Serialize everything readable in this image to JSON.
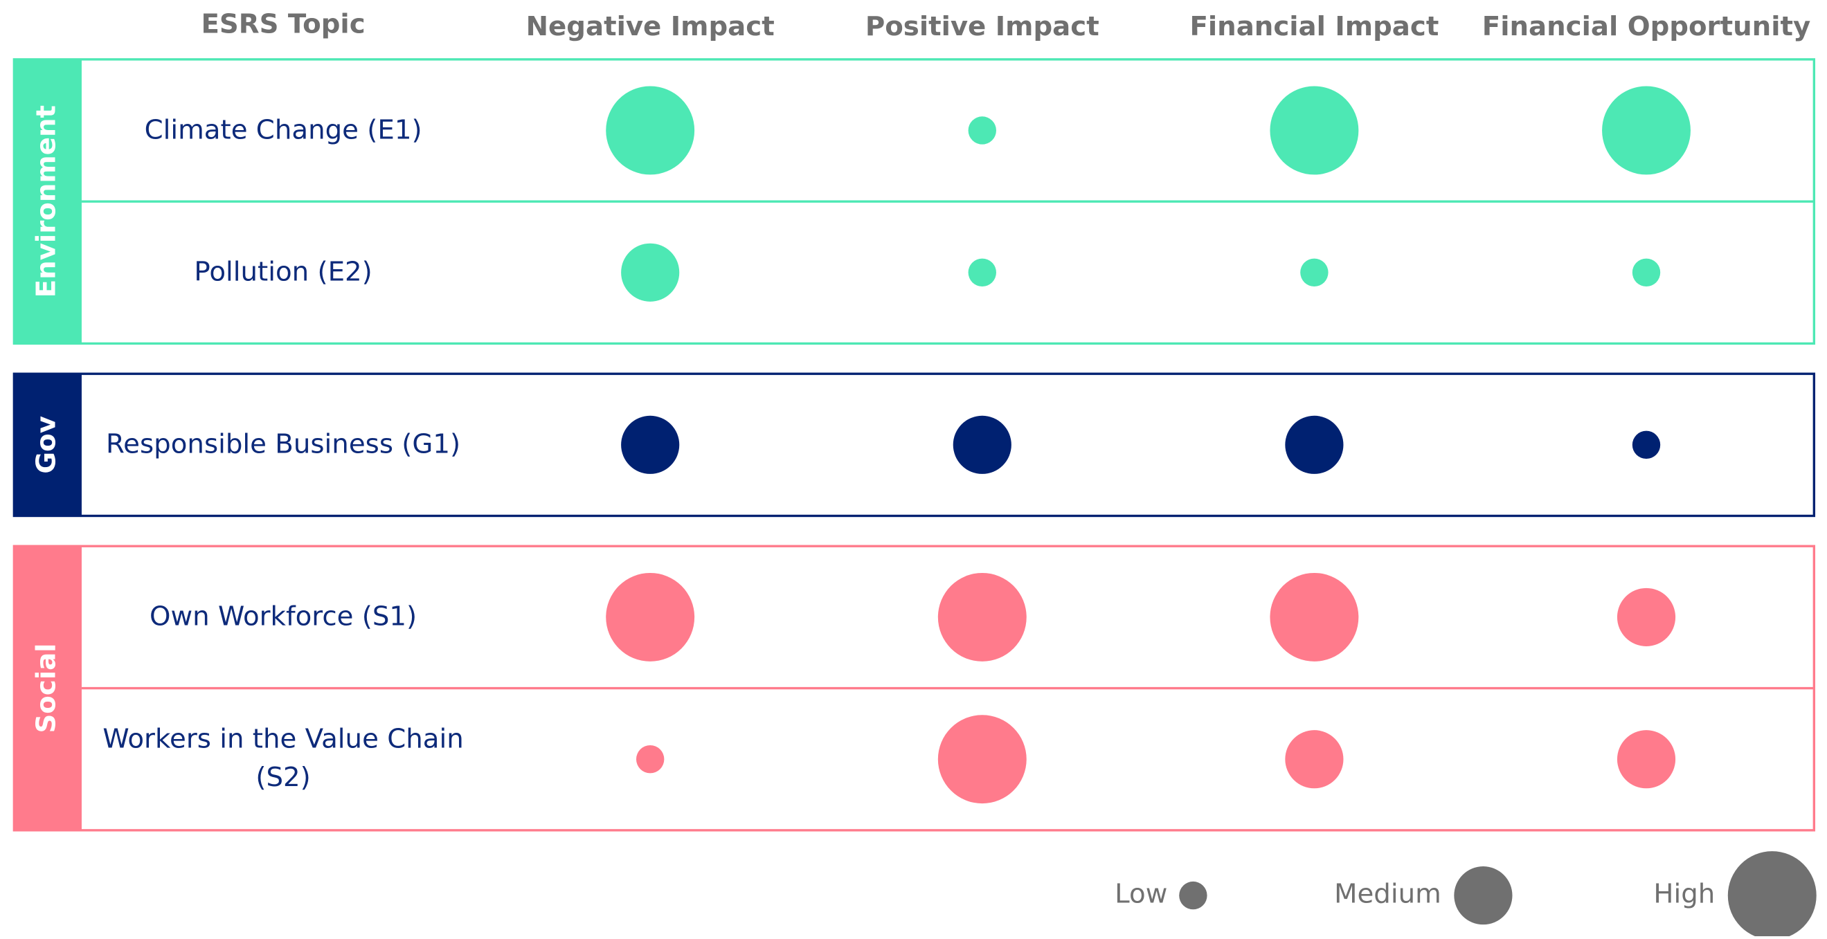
{
  "header": {
    "topic": "ESRS Topic",
    "columns": [
      "Negative Impact",
      "Positive Impact",
      "Financial Impact",
      "Financial Opportunity"
    ]
  },
  "groups": [
    {
      "name": "Environment",
      "color": "#4de8b4",
      "rows": [
        {
          "topic": "Climate Change (E1)",
          "levels": [
            "High",
            "Low",
            "High",
            "High"
          ]
        },
        {
          "topic": "Pollution (E2)",
          "levels": [
            "Medium",
            "Low",
            "Low",
            "Low"
          ]
        }
      ]
    },
    {
      "name": "Gov",
      "color": "#002171",
      "rows": [
        {
          "topic": "Responsible Business (G1)",
          "levels": [
            "Medium",
            "Medium",
            "Medium",
            "Low"
          ]
        }
      ]
    },
    {
      "name": "Social",
      "color": "#ff7b8c",
      "rows": [
        {
          "topic": "Own Workforce (S1)",
          "levels": [
            "High",
            "High",
            "High",
            "Medium"
          ]
        },
        {
          "topic": "Workers in the Value Chain (S2)",
          "levels": [
            "Low",
            "High",
            "Medium",
            "Medium"
          ]
        }
      ]
    }
  ],
  "legend": {
    "color": "#707070",
    "levels": [
      "Low",
      "Medium",
      "High"
    ]
  }
}
